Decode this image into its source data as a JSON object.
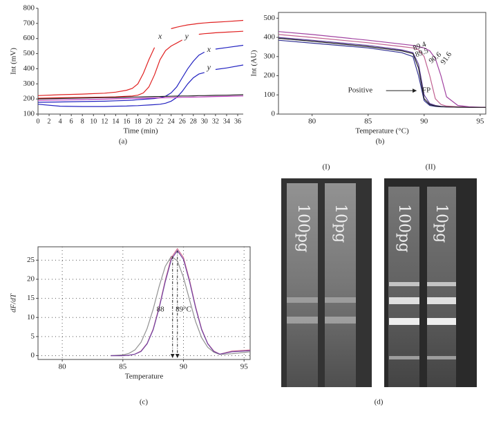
{
  "chart_data": [
    {
      "type": "line",
      "caption": "(a)",
      "xlabel": "Time (min)",
      "ylabel": "Int (mV)",
      "x": [
        0,
        4,
        8,
        12,
        14,
        16,
        17,
        18,
        19,
        20,
        21,
        22,
        23,
        24,
        25,
        26,
        27,
        28,
        29,
        30,
        31,
        32,
        34,
        37
      ],
      "xlim": [
        0,
        37
      ],
      "xticks": [
        0,
        2,
        4,
        6,
        8,
        10,
        12,
        14,
        16,
        18,
        20,
        22,
        24,
        26,
        28,
        30,
        32,
        34,
        36
      ],
      "ylim": [
        100,
        800
      ],
      "yticks": [
        100,
        200,
        300,
        400,
        500,
        600,
        700,
        800
      ],
      "grid": false,
      "series": [
        {
          "color": "#e02020",
          "values": [
            222,
            228,
            232,
            238,
            245,
            258,
            270,
            300,
            370,
            460,
            540,
            null,
            null,
            665,
            675,
            683,
            690,
            695,
            700,
            703,
            706,
            708,
            712,
            720
          ]
        },
        {
          "color": "#e02020",
          "values": [
            205,
            208,
            210,
            212,
            214,
            218,
            220,
            225,
            240,
            280,
            360,
            460,
            520,
            550,
            570,
            590,
            null,
            null,
            628,
            632,
            635,
            638,
            642,
            648
          ]
        },
        {
          "color": "#2020c0",
          "values": [
            178,
            180,
            183,
            185,
            188,
            190,
            192,
            195,
            198,
            200,
            203,
            208,
            218,
            240,
            280,
            340,
            400,
            450,
            490,
            510,
            null,
            530,
            540,
            555
          ]
        },
        {
          "color": "#2020c0",
          "values": [
            165,
            152,
            150,
            150,
            152,
            153,
            155,
            156,
            158,
            160,
            162,
            165,
            172,
            185,
            210,
            250,
            300,
            340,
            365,
            375,
            null,
            395,
            405,
            425
          ]
        },
        {
          "color": "#202020",
          "values": [
            200,
            203,
            206,
            209,
            210,
            212,
            213,
            213,
            214,
            215,
            216,
            216,
            217,
            218,
            219,
            220,
            220,
            221,
            222,
            222,
            223,
            224,
            225,
            228
          ]
        },
        {
          "color": "#c040c0",
          "values": [
            190,
            193,
            196,
            199,
            201,
            203,
            204,
            204,
            205,
            206,
            207,
            207,
            208,
            209,
            210,
            211,
            211,
            212,
            213,
            214,
            215,
            216,
            217,
            220
          ]
        }
      ],
      "annotations": [
        "x",
        "y",
        "x",
        "y"
      ]
    },
    {
      "type": "line",
      "caption": "(b)",
      "xlabel": "Temperature (°C)",
      "ylabel": "Int (AU)",
      "x": [
        77,
        80,
        85,
        88,
        89,
        89.5,
        90,
        90.5,
        91,
        91.5,
        92,
        93,
        94,
        95.5
      ],
      "xlim": [
        77,
        95.5
      ],
      "xticks": [
        80,
        85,
        90,
        95
      ],
      "ylim": [
        0,
        530
      ],
      "yticks": [
        0,
        100,
        200,
        300,
        400,
        500
      ],
      "grid": false,
      "series": [
        {
          "color": "#303090",
          "values": [
            385,
            370,
            345,
            320,
            300,
            200,
            70,
            45,
            40,
            38,
            37,
            36,
            36,
            35
          ]
        },
        {
          "color": "#6040a0",
          "values": [
            400,
            385,
            358,
            335,
            320,
            260,
            100,
            55,
            45,
            40,
            38,
            37,
            36,
            35
          ]
        },
        {
          "color": "#c06090",
          "values": [
            415,
            400,
            372,
            352,
            345,
            335,
            300,
            200,
            80,
            50,
            42,
            38,
            36,
            35
          ]
        },
        {
          "color": "#a040a0",
          "values": [
            430,
            415,
            385,
            365,
            358,
            350,
            345,
            330,
            290,
            200,
            90,
            45,
            38,
            35
          ]
        },
        {
          "color": "#202020",
          "values": [
            395,
            380,
            352,
            330,
            315,
            240,
            80,
            50,
            42,
            39,
            37,
            36,
            35,
            35
          ]
        }
      ],
      "annotations": [
        "89.4",
        "89.5",
        "90.6",
        "91.6",
        "Positive",
        "FP"
      ]
    },
    {
      "type": "line",
      "caption": "(c)",
      "xlabel": "Temperature",
      "ylabel": "dF/dT",
      "x": [
        84,
        85,
        85.5,
        86,
        86.5,
        87,
        87.5,
        88,
        88.5,
        89,
        89.5,
        90,
        90.5,
        91,
        91.5,
        92,
        92.5,
        93,
        94,
        95.5
      ],
      "xlim": [
        78,
        95.5
      ],
      "xticks": [
        80,
        85,
        90,
        95
      ],
      "ylim": [
        -1,
        28.5
      ],
      "yticks": [
        0,
        5,
        10,
        15,
        20,
        25
      ],
      "grid": true,
      "series": [
        {
          "color": "#909090",
          "values": [
            0,
            0.2,
            0.6,
            1.5,
            3.5,
            7.1,
            12.2,
            18.2,
            23.4,
            26,
            24.8,
            20.5,
            14.6,
            8.9,
            4.7,
            2.2,
            0.9,
            0.3,
            0.5,
            1
          ]
        },
        {
          "color": "#d07090",
          "values": [
            0,
            0,
            0.1,
            0.4,
            1.2,
            3.2,
            7,
            12.8,
            19.8,
            25.7,
            28,
            25.7,
            19.8,
            12.8,
            7,
            3.2,
            1.2,
            0.4,
            1.2,
            1.5
          ]
        },
        {
          "color": "#7040a0",
          "values": [
            0,
            0,
            0.1,
            0.4,
            1.1,
            3.1,
            6.8,
            12.5,
            19.4,
            25.2,
            27.5,
            25.2,
            19.4,
            12.5,
            6.8,
            3.1,
            1.1,
            0.4,
            1,
            1.3
          ]
        }
      ],
      "annotations": [
        "88",
        "89°C"
      ]
    }
  ],
  "gel": {
    "caption": "(d)",
    "panels": [
      {
        "label": "(I)",
        "lanes": [
          "100pg",
          "10pg"
        ]
      },
      {
        "label": "(II)",
        "lanes": [
          "100pg",
          "10pg"
        ]
      }
    ]
  }
}
